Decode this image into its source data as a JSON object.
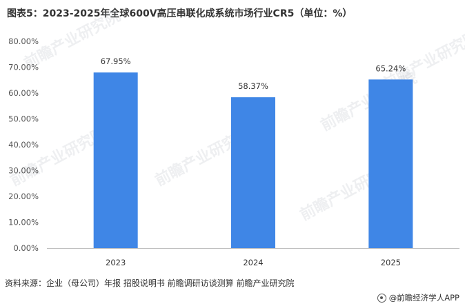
{
  "title": "图表5：2023-2025年全球600V高压串联化成系统市场行业CR5（单位：%）",
  "source": "资料来源：企业（母公司）年报 招股说明书 前瞻调研访谈测算 前瞻产业研究院",
  "credit": "@前瞻经济学人APP",
  "watermark": "前瞻产业研究院",
  "colors": {
    "bar": "#3f86e6",
    "axis": "#bfbfbf"
  },
  "chart_data": {
    "type": "bar",
    "title": "图表5：2023-2025年全球600V高压串联化成系统市场行业CR5（单位：%）",
    "categories": [
      "2023",
      "2024",
      "2025"
    ],
    "values": [
      67.95,
      58.37,
      65.24
    ],
    "data_labels": [
      "67.95%",
      "58.37%",
      "65.24%"
    ],
    "ylim": [
      0,
      80
    ],
    "yticks": [
      0,
      10,
      20,
      30,
      40,
      50,
      60,
      70,
      80
    ],
    "ytick_labels": [
      "0.00%",
      "10.00%",
      "20.00%",
      "30.00%",
      "40.00%",
      "50.00%",
      "60.00%",
      "70.00%",
      "80.00%"
    ],
    "xlabel": "",
    "ylabel": "",
    "grid": false,
    "legend": "none"
  }
}
